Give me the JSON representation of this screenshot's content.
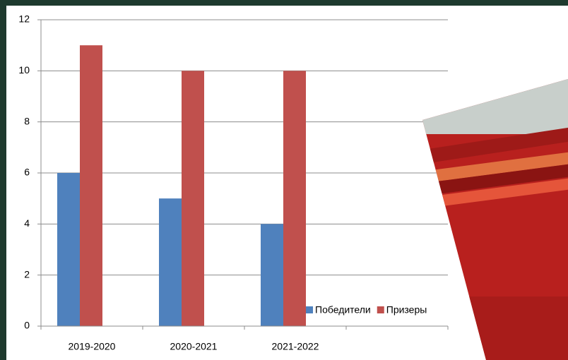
{
  "chart_data": {
    "type": "bar",
    "categories": [
      "2019-2020",
      "2020-2021",
      "2021-2022",
      null
    ],
    "series": [
      {
        "name": "Победители",
        "color": "#4f81bd",
        "values": [
          6,
          5,
          4,
          null
        ]
      },
      {
        "name": "Призеры",
        "color": "#c0504d",
        "values": [
          11,
          10,
          10,
          null
        ]
      }
    ],
    "ylim": [
      0,
      12
    ],
    "yticks": [
      0,
      2,
      4,
      6,
      8,
      10,
      12
    ],
    "grid": true
  }
}
